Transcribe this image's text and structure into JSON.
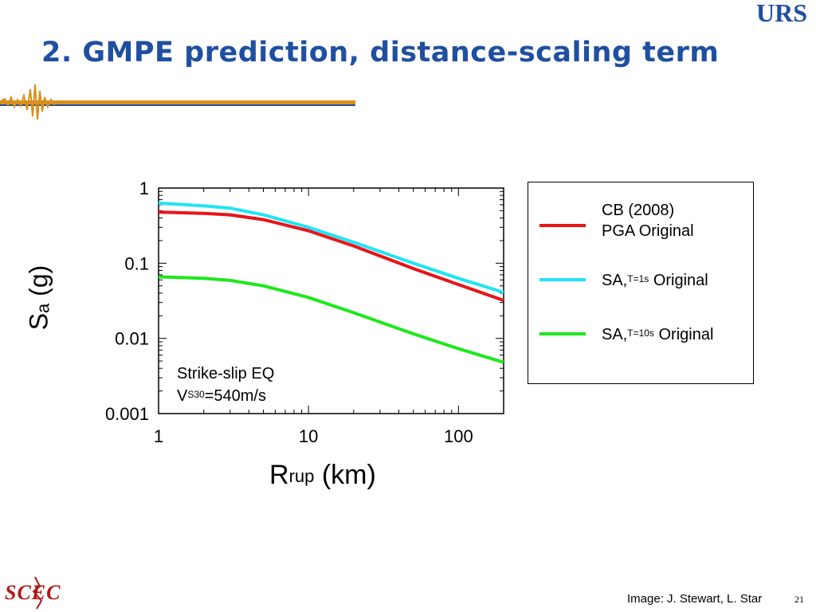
{
  "slide": {
    "title": "2. GMPE prediction, distance-scaling term",
    "logo_text": "URS",
    "footer_credit": "Image: J. Stewart, L. Star",
    "page_number": "21",
    "footer_logo_text": "SCEC",
    "accent_color": "#1f4fa0"
  },
  "chart_data": {
    "type": "line",
    "xscale": "log",
    "yscale": "log",
    "xlim": [
      1,
      200
    ],
    "ylim": [
      0.001,
      1
    ],
    "xticks": [
      1,
      10,
      100
    ],
    "xtick_labels": [
      "1",
      "10",
      "100"
    ],
    "yticks": [
      0.001,
      0.01,
      0.1,
      1
    ],
    "ytick_labels": [
      "0.001",
      "0.01",
      "0.1",
      "1"
    ],
    "xlabel_main": "R",
    "xlabel_sub": "rup",
    "xlabel_unit": "(km)",
    "ylabel_main": "S",
    "ylabel_sub": "a",
    "ylabel_unit": "(g)",
    "grid": false,
    "legend_position": "right-outside",
    "annotation": {
      "line1": "Strike-slip EQ",
      "line2_main": "V",
      "line2_sub": "S30",
      "line2_rest": "=540m/s"
    },
    "series": [
      {
        "label_line1": "CB (2008)",
        "label_line2": "PGA Original",
        "color": "#e8141a",
        "x": [
          1,
          2,
          3,
          5,
          10,
          20,
          50,
          100,
          200
        ],
        "y": [
          0.48,
          0.46,
          0.44,
          0.38,
          0.27,
          0.17,
          0.085,
          0.052,
          0.032
        ]
      },
      {
        "label_main": "SA,",
        "label_sub": "T=1s",
        "label_rest": "Original",
        "color": "#20e4f4",
        "x": [
          1,
          2,
          3,
          5,
          10,
          20,
          50,
          100,
          200
        ],
        "y": [
          0.63,
          0.58,
          0.54,
          0.44,
          0.3,
          0.19,
          0.1,
          0.063,
          0.041
        ]
      },
      {
        "label_main": "SA,",
        "label_sub": "T=10s",
        "label_rest": "Original",
        "color": "#1ee81e",
        "x": [
          1,
          2,
          3,
          5,
          10,
          20,
          50,
          100,
          200
        ],
        "y": [
          0.066,
          0.063,
          0.059,
          0.05,
          0.035,
          0.022,
          0.0115,
          0.0073,
          0.0048
        ]
      }
    ]
  }
}
